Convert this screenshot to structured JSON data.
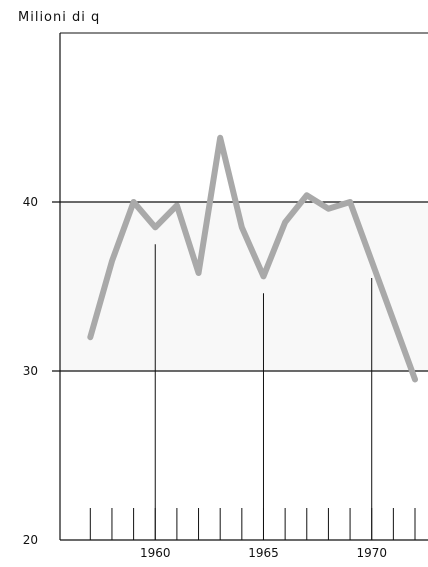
{
  "chart_data": {
    "type": "line",
    "ylabel": "Milioni di q",
    "xlabel": "",
    "title": "",
    "ylim": [
      20,
      50
    ],
    "xlim": [
      1955.6,
      1972.6
    ],
    "yticks": [
      20,
      30,
      40
    ],
    "xticks": [
      1960,
      1965,
      1970
    ],
    "x_minor_ticks": [
      1957,
      1958,
      1959,
      1960,
      1961,
      1962,
      1963,
      1964,
      1965,
      1966,
      1967,
      1968,
      1969,
      1970,
      1971,
      1972
    ],
    "grid": "horizontal at 30 and 40",
    "series": [
      {
        "color": "#a9a9a9",
        "x": [
          1957,
          1958,
          1959,
          1960,
          1961,
          1962,
          1963,
          1964,
          1965,
          1966,
          1967,
          1968,
          1969,
          1970,
          1971,
          1972
        ],
        "y": [
          32.0,
          36.5,
          40.0,
          38.5,
          39.8,
          35.8,
          43.8,
          38.5,
          35.6,
          38.8,
          40.4,
          39.6,
          40.0,
          36.5,
          33.0,
          29.5
        ]
      }
    ]
  }
}
